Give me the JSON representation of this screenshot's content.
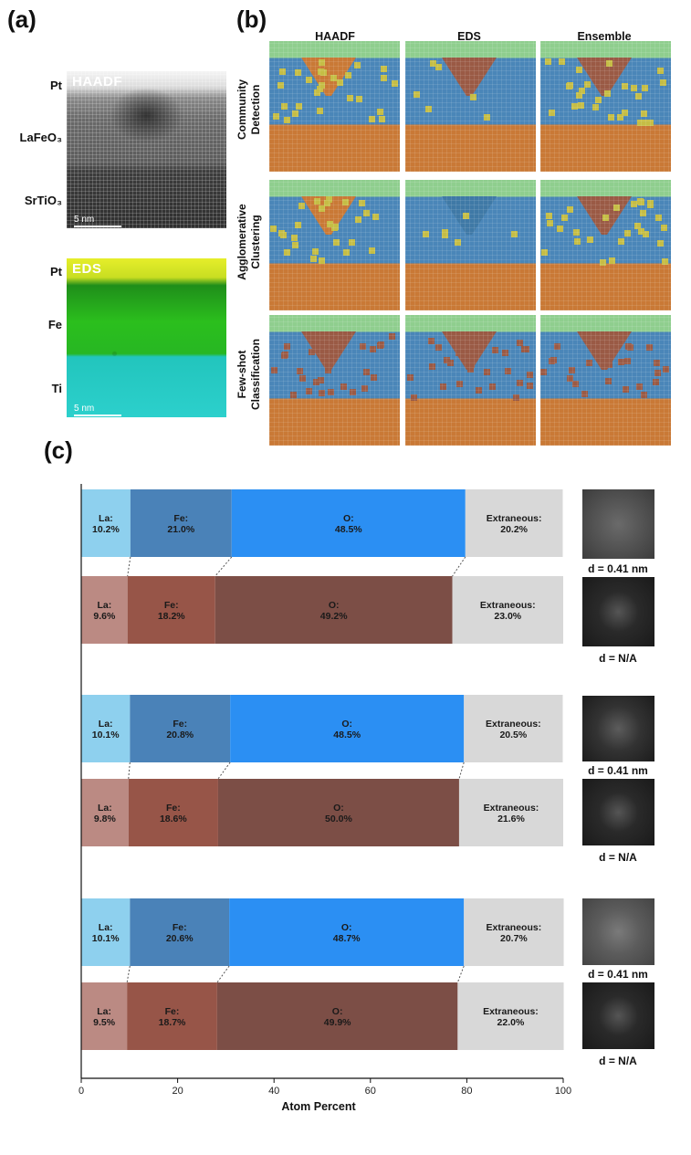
{
  "panel_a": {
    "letter": "(a)",
    "haadf": {
      "tag": "HAADF",
      "scale": "5 nm",
      "layers": [
        "Pt",
        "LaFeO₃",
        "SrTiO₃"
      ]
    },
    "eds": {
      "tag": "EDS",
      "scale": "5 nm",
      "layers": [
        "Pt",
        "Fe",
        "Ti"
      ]
    }
  },
  "panel_b": {
    "letter": "(b)",
    "columns": [
      "HAADF",
      "EDS",
      "Ensemble"
    ],
    "rows": [
      [
        "Community",
        "Detection"
      ],
      [
        "Agglomerative",
        "Clustering"
      ],
      [
        "Few-shot",
        "Classification"
      ]
    ]
  },
  "panel_c": {
    "letter": "(c)",
    "fft_captions": [
      "d = 0.41 nm",
      "d = N/A",
      "d = 0.41 nm",
      "d = N/A",
      "d = 0.41 nm",
      "d = N/A"
    ]
  },
  "colors": {
    "la_blue": "#8ed0ee",
    "fe_blue": "#4a82b8",
    "o_blue": "#2b8ff3",
    "la_brown": "#bb8a83",
    "fe_brown": "#975548",
    "o_brown": "#7c4e46",
    "extraneous": "#d8d8d8",
    "map_blue": "#4a86b8",
    "map_orange": "#c97936",
    "map_green": "#8fce8e",
    "map_yellow": "#c5bd45",
    "map_brown": "#9a5a45",
    "map_purple": "#b9a0d6"
  },
  "chart_data": {
    "type": "bar",
    "orientation": "horizontal",
    "stacked": true,
    "xlabel": "Atom Percent",
    "xlim": [
      0,
      100
    ],
    "xticks": [
      0,
      20,
      40,
      60,
      80,
      100
    ],
    "segments": [
      "La",
      "Fe",
      "O",
      "Extraneous"
    ],
    "bars": [
      {
        "palette": "blue",
        "values": [
          10.2,
          21.0,
          48.5,
          20.2
        ]
      },
      {
        "palette": "brown",
        "values": [
          9.6,
          18.2,
          49.2,
          23.0
        ]
      },
      {
        "palette": "blue",
        "values": [
          10.1,
          20.8,
          48.5,
          20.5
        ]
      },
      {
        "palette": "brown",
        "values": [
          9.8,
          18.6,
          50.0,
          21.6
        ]
      },
      {
        "palette": "blue",
        "values": [
          10.1,
          20.6,
          48.7,
          20.7
        ]
      },
      {
        "palette": "brown",
        "values": [
          9.5,
          18.7,
          49.9,
          22.0
        ]
      }
    ],
    "labels": [
      [
        "La:",
        "10.2%",
        "Fe:",
        "21.0%",
        "O:",
        "48.5%",
        "Extraneous:",
        "20.2%"
      ],
      [
        "La:",
        "9.6%",
        "Fe:",
        "18.2%",
        "O:",
        "49.2%",
        "Extraneous:",
        "23.0%"
      ],
      [
        "La:",
        "10.1%",
        "Fe:",
        "20.8%",
        "O:",
        "48.5%",
        "Extraneous:",
        "20.5%"
      ],
      [
        "La:",
        "9.8%",
        "Fe:",
        "18.6%",
        "O:",
        "50.0%",
        "Extraneous:",
        "21.6%"
      ],
      [
        "La:",
        "10.1%",
        "Fe:",
        "20.6%",
        "O:",
        "48.7%",
        "Extraneous:",
        "20.7%"
      ],
      [
        "La:",
        "9.5%",
        "Fe:",
        "18.7%",
        "O:",
        "49.9%",
        "Extraneous:",
        "22.0%"
      ]
    ]
  }
}
